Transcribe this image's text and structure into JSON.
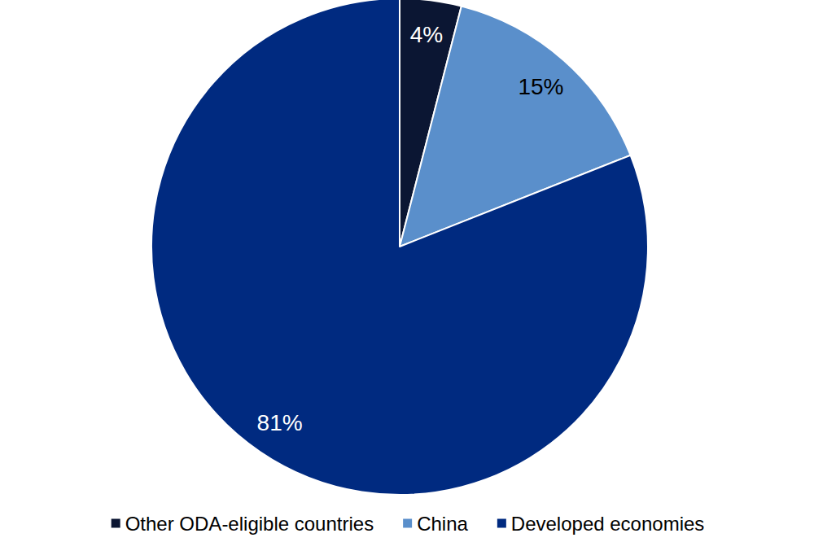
{
  "chart_data": {
    "type": "pie",
    "categories": [
      "Other ODA-eligible countries",
      "China",
      "Developed economies"
    ],
    "values": [
      4,
      15,
      81
    ],
    "value_labels": [
      "4%",
      "15%",
      "81%"
    ],
    "colors": [
      "#0b1633",
      "#5a8fcb",
      "#002a80"
    ],
    "data_labels": true,
    "legend": "bottom"
  }
}
